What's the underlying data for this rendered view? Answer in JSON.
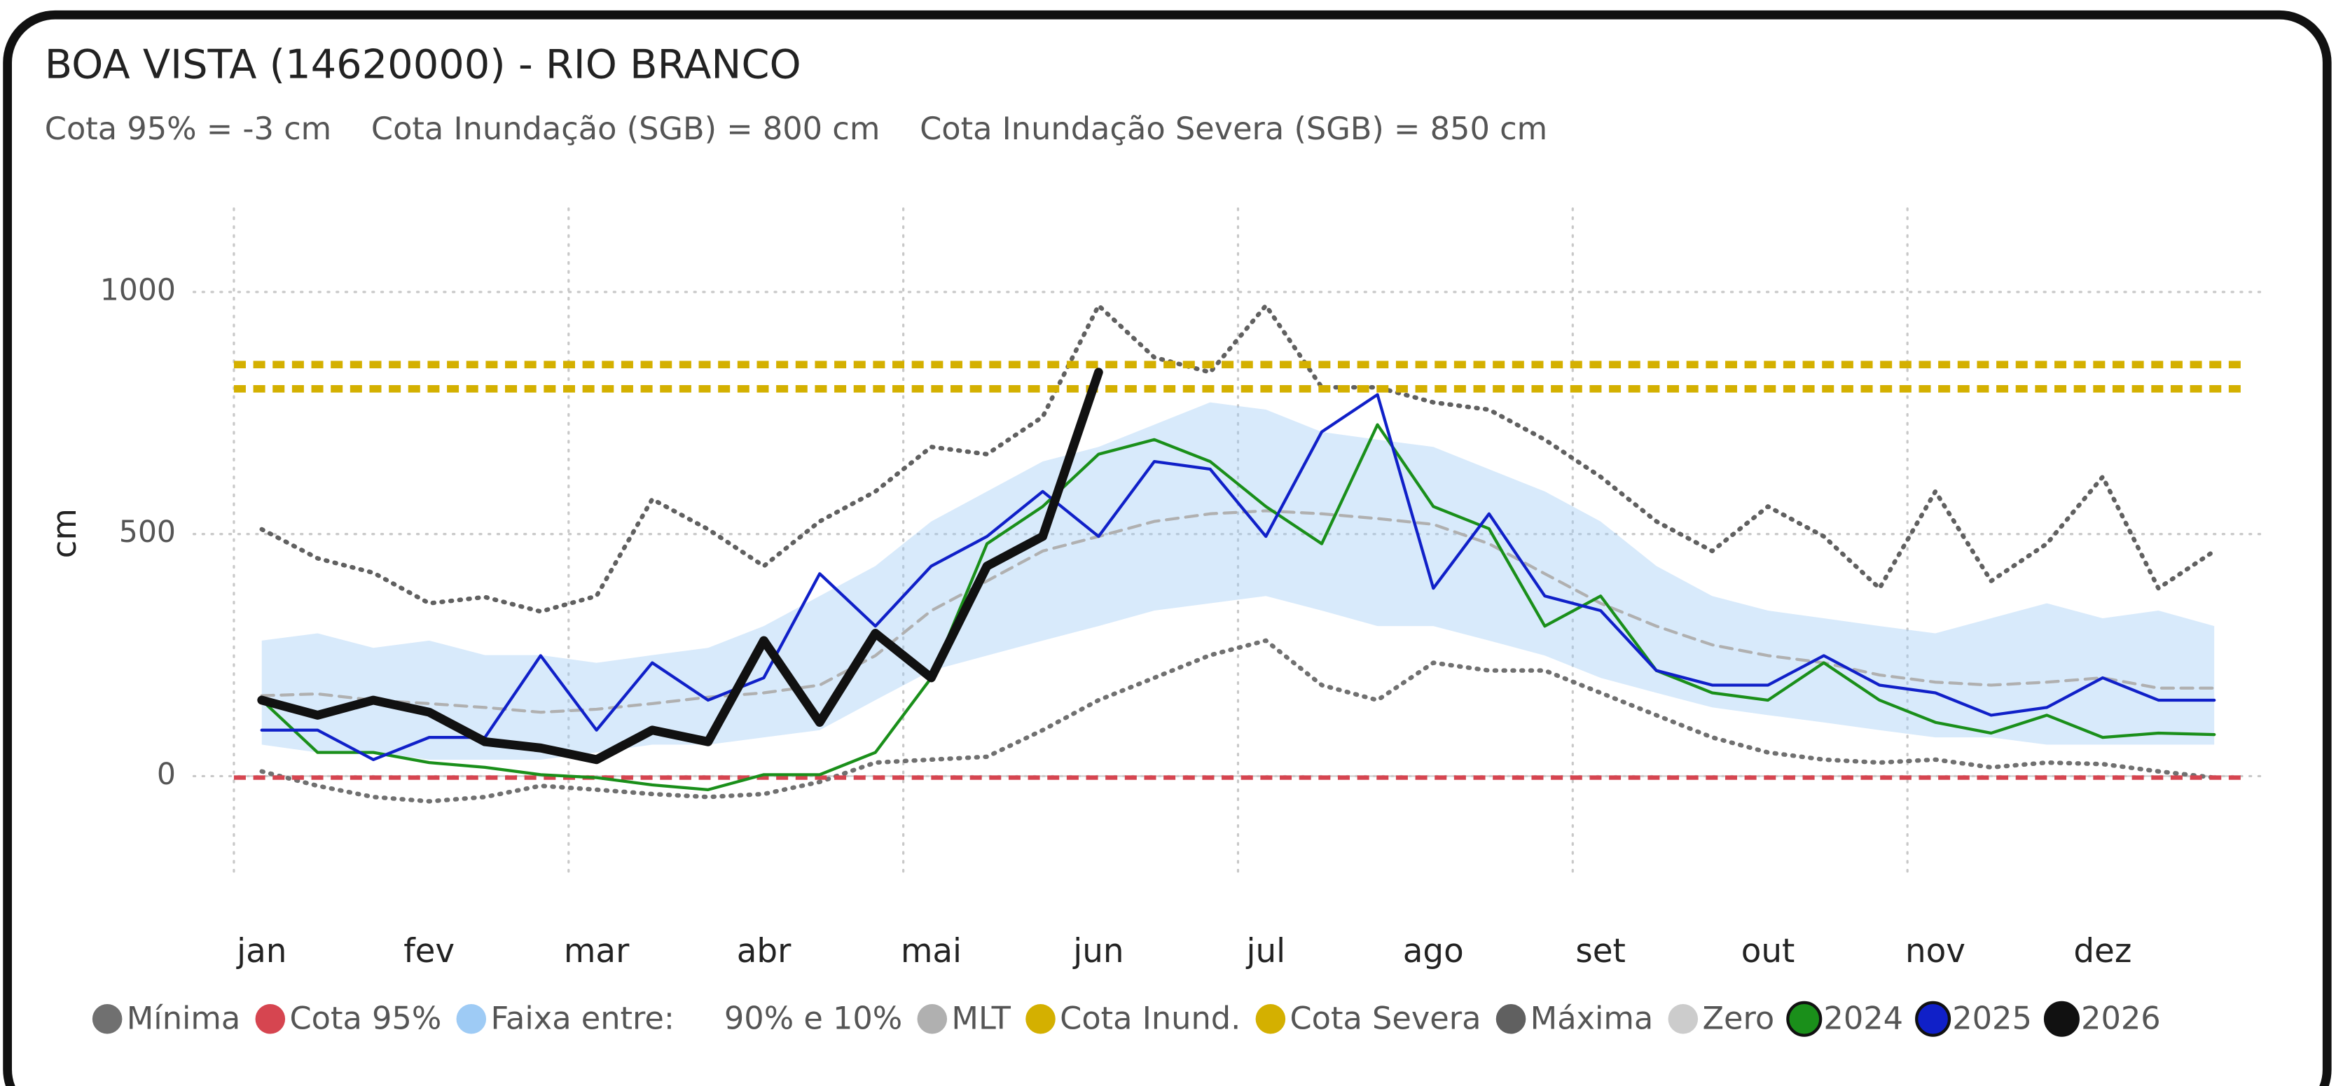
{
  "chart_data": {
    "type": "line",
    "title": "BOA VISTA (14620000) - RIO BRANCO",
    "subtitle": "Cota 95% = -3 cm    Cota Inundação (SGB) = 800 cm    Cota Inundação Severa (SGB) = 850 cm",
    "y_label": "cm",
    "categories": [
      "jan",
      null,
      null,
      "fev",
      null,
      null,
      "mar",
      null,
      null,
      "abr",
      null,
      null,
      "mai",
      null,
      null,
      "jun",
      null,
      null,
      "jul",
      null,
      null,
      "ago",
      null,
      null,
      "set",
      null,
      null,
      "out",
      null,
      null,
      "nov",
      null,
      null,
      "dez",
      null,
      null
    ],
    "ylim": [
      -200,
      1150
    ],
    "yticks": [
      0,
      500,
      1000
    ],
    "grid": true,
    "xgrid_every": 6,
    "series": [
      {
        "name": "Mínima",
        "color": "#707070",
        "dash": "dotted",
        "width": 3,
        "values": [
          10,
          -20,
          -43,
          -52,
          -43,
          -20,
          -28,
          -37,
          -43,
          -37,
          -12,
          28,
          34,
          40,
          95,
          157,
          203,
          250,
          280,
          188,
          157,
          234,
          218,
          218,
          172,
          126,
          80,
          49,
          34,
          28,
          34,
          18,
          28,
          25,
          10,
          -3
        ]
      },
      {
        "name": "Cota 95%",
        "color": "#d64550",
        "dash": "dashed",
        "width": 3,
        "value": -3
      },
      {
        "name": "Faixa entre:     90% e 10%",
        "color": "#9ecbf5",
        "band": true,
        "upper": [
          280,
          295,
          265,
          280,
          250,
          250,
          234,
          250,
          265,
          310,
          372,
          434,
          526,
          588,
          650,
          680,
          726,
          772,
          757,
          711,
          695,
          680,
          634,
          588,
          526,
          434,
          372,
          342,
          326,
          310,
          295,
          326,
          357,
          326,
          342,
          310
        ],
        "lower": [
          65,
          49,
          49,
          34,
          34,
          34,
          49,
          65,
          65,
          80,
          95,
          157,
          218,
          249,
          280,
          310,
          342,
          357,
          372,
          342,
          310,
          310,
          280,
          249,
          203,
          172,
          142,
          126,
          111,
          95,
          80,
          80,
          65,
          65,
          65,
          65
        ]
      },
      {
        "name": "MLT",
        "color": "#b0b0b0",
        "dash": "dashed",
        "width": 2,
        "values": [
          166,
          170,
          157,
          150,
          142,
          132,
          138,
          150,
          163,
          172,
          188,
          249,
          342,
          403,
          465,
          495,
          526,
          542,
          548,
          542,
          532,
          520,
          480,
          418,
          357,
          310,
          271,
          249,
          234,
          209,
          194,
          188,
          194,
          203,
          182,
          182
        ]
      },
      {
        "name": "Cota Inund.",
        "color": "#d4b000",
        "dash": "dashed",
        "width": 5,
        "value": 800
      },
      {
        "name": "Cota Severa",
        "color": "#d4b000",
        "dash": "dashed",
        "width": 5,
        "value": 850
      },
      {
        "name": "Máxima",
        "color": "#606060",
        "dash": "dotted",
        "width": 3,
        "values": [
          510,
          450,
          420,
          357,
          370,
          340,
          372,
          572,
          510,
          434,
          526,
          588,
          680,
          665,
          742,
          972,
          865,
          834,
          972,
          803,
          803,
          772,
          757,
          695,
          618,
          526,
          465,
          557,
          495,
          388,
          588,
          403,
          480,
          618,
          388,
          465
        ]
      },
      {
        "name": "Zero",
        "color": "#cccccc",
        "dash": "solid",
        "width": 1,
        "value": 0
      },
      {
        "name": "2024",
        "color": "#1a8f1a",
        "dash": "solid",
        "width": 2,
        "values": [
          157,
          49,
          49,
          28,
          18,
          3,
          -3,
          -18,
          -28,
          3,
          3,
          49,
          203,
          480,
          557,
          665,
          695,
          650,
          557,
          480,
          726,
          557,
          511,
          310,
          372,
          218,
          172,
          157,
          234,
          157,
          111,
          89,
          126,
          80,
          89,
          86
        ]
      },
      {
        "name": "2025",
        "color": "#1020c8",
        "dash": "solid",
        "width": 2,
        "values": [
          95,
          95,
          34,
          80,
          80,
          249,
          95,
          234,
          157,
          203,
          418,
          310,
          434,
          495,
          588,
          495,
          650,
          634,
          495,
          711,
          788,
          388,
          542,
          372,
          342,
          218,
          188,
          188,
          249,
          188,
          172,
          126,
          142,
          203,
          157,
          157
        ]
      },
      {
        "name": "2026",
        "color": "#111111",
        "dash": "solid",
        "width": 6,
        "values": [
          157,
          126,
          157,
          132,
          71,
          58,
          34,
          95,
          71,
          280,
          111,
          295,
          203,
          434,
          495,
          834,
          null,
          null,
          null,
          null,
          null,
          null,
          null,
          null,
          null,
          null,
          null,
          null,
          null,
          null,
          null,
          null,
          null,
          null,
          null,
          null
        ]
      }
    ]
  }
}
